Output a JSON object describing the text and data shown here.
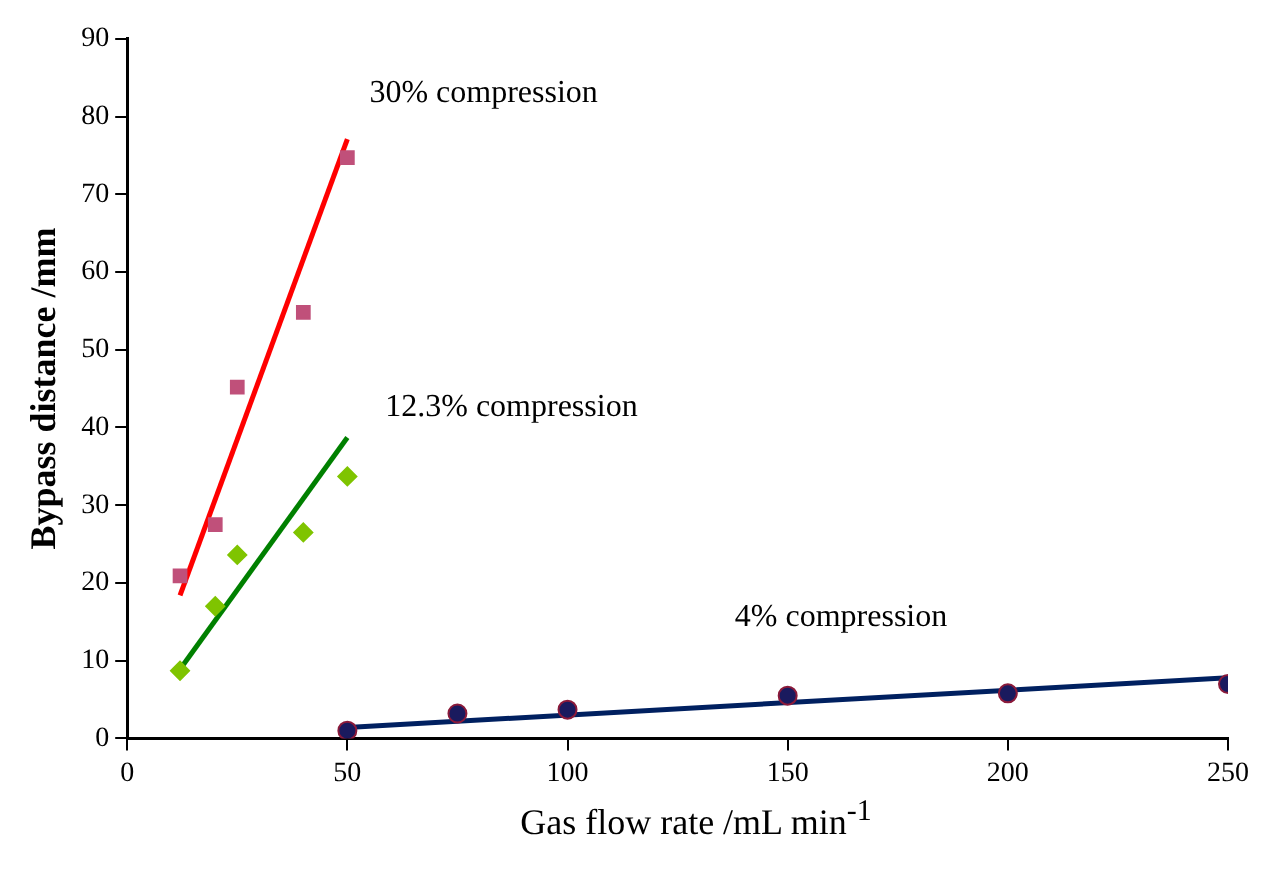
{
  "chart_data": {
    "type": "scatter",
    "xlabel": "Gas flow rate /mL min$^{-1}$",
    "ylabel": "Bypass distance /mm",
    "xlim": [
      0,
      250
    ],
    "xticks": [
      0,
      50,
      100,
      150,
      200,
      250
    ],
    "ylim": [
      0,
      90
    ],
    "yticks": [
      0,
      10,
      20,
      30,
      40,
      50,
      60,
      70,
      80,
      90
    ],
    "grid": false,
    "legend": false,
    "series": [
      {
        "marker": "square",
        "color": "#c0507a",
        "x": [
          12,
          20,
          25,
          40,
          50
        ],
        "values": [
          20.9,
          27.5,
          45.2,
          54.8,
          74.7
        ]
      },
      {
        "type": "line",
        "marker": "none",
        "color": "#ff0000",
        "x": [
          12,
          50
        ],
        "values": [
          18.4,
          77.1
        ]
      },
      {
        "marker": "diamond",
        "color": "#7fc400",
        "x": [
          12,
          20,
          25,
          40,
          50
        ],
        "values": [
          8.7,
          17,
          23.6,
          26.5,
          33.7
        ]
      },
      {
        "type": "line",
        "marker": "none",
        "color": "#008000",
        "x": [
          12,
          50
        ],
        "values": [
          8.9,
          38.7
        ]
      },
      {
        "marker": "circle",
        "color": "#1a1a5e",
        "x": [
          50,
          75,
          100,
          150,
          200,
          250
        ],
        "values": [
          1,
          3.2,
          3.7,
          5.5,
          5.8,
          7
        ]
      },
      {
        "type": "line",
        "marker": "none",
        "color": "#002060",
        "x": [
          50,
          250
        ],
        "values": [
          1.4,
          7.8
        ]
      }
    ],
    "annotations": [
      "30% compression",
      "12.3% compression",
      "4% compression"
    ]
  }
}
